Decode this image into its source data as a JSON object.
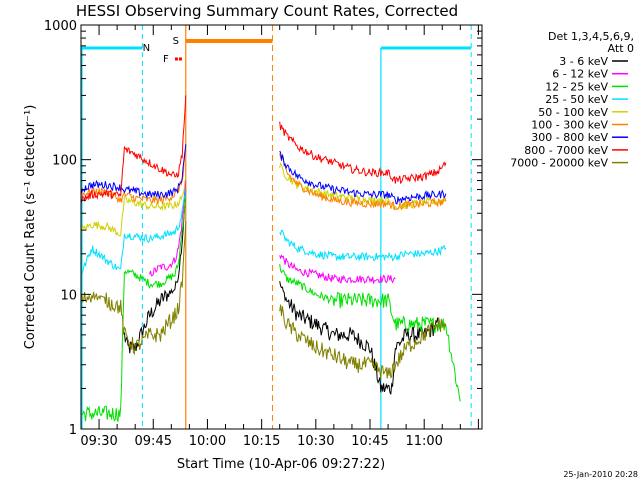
{
  "chart_data": {
    "type": "line",
    "title": "HESSI Observing Summary Count Rates, Corrected",
    "xlabel": "Start Time (10-Apr-06 09:27:22)",
    "ylabel": "Corrected Count Rate (s⁻¹ detector⁻¹)",
    "y_scale": "log",
    "ylim": [
      1,
      1000
    ],
    "xlim_minutes": [
      "09:25",
      "11:16"
    ],
    "y_ticks": [
      "1",
      "10",
      "100",
      "1000"
    ],
    "x_ticks": [
      "09:30",
      "09:45",
      "10:00",
      "10:15",
      "10:30",
      "10:45",
      "11:00"
    ],
    "legend_header": [
      "Det 1,3,4,5,6,9,",
      "Att 0"
    ],
    "grid": false,
    "footer_stamp": "25-Jan-2010 20:28",
    "flags": {
      "N": {
        "label": "N",
        "color": "#00e0ff",
        "night_segments": [
          [
            "09:25",
            "09:42"
          ],
          [
            "10:48",
            "11:13"
          ]
        ],
        "dashed_edges": [
          "09:42",
          "11:13"
        ]
      },
      "S": {
        "label": "S",
        "color": "#ff8000",
        "segment": [
          "09:54",
          "10:18"
        ],
        "dashed_edges": [
          "10:18"
        ],
        "solid_edges": [
          "09:54"
        ]
      },
      "F": {
        "label": "F",
        "color": "#ff0000",
        "segment": [
          "09:51",
          "09:53"
        ]
      }
    },
    "gaps": [
      [
        "09:54",
        "10:20"
      ]
    ],
    "series": [
      {
        "name": "3 - 6 keV",
        "color": "#000000",
        "points": [
          [
            "09:37",
            5
          ],
          [
            "09:38",
            4
          ],
          [
            "09:40",
            4
          ],
          [
            "09:44",
            7
          ],
          [
            "09:47",
            9
          ],
          [
            "09:49",
            10
          ],
          [
            "09:51",
            11
          ],
          [
            "09:52",
            14
          ],
          [
            "09:53",
            25
          ],
          [
            "09:54",
            60
          ],
          [
            "10:20",
            12
          ],
          [
            "10:22",
            9
          ],
          [
            "10:25",
            7
          ],
          [
            "10:30",
            6
          ],
          [
            "10:35",
            5
          ],
          [
            "10:40",
            5
          ],
          [
            "10:45",
            4
          ],
          [
            "10:48",
            2
          ],
          [
            "10:51",
            2
          ],
          [
            "10:52",
            4
          ],
          [
            "10:55",
            5
          ],
          [
            "11:00",
            5
          ],
          [
            "11:04",
            6
          ]
        ]
      },
      {
        "name": "6 - 12 keV",
        "color": "#ff00ff",
        "points": [
          [
            "09:44",
            14
          ],
          [
            "09:47",
            16
          ],
          [
            "09:49",
            16
          ],
          [
            "09:51",
            18
          ],
          [
            "09:52",
            22
          ],
          [
            "09:53",
            35
          ],
          [
            "09:54",
            70
          ],
          [
            "10:20",
            20
          ],
          [
            "10:22",
            17
          ],
          [
            "10:25",
            15
          ],
          [
            "10:30",
            14
          ],
          [
            "10:35",
            13
          ],
          [
            "10:40",
            13
          ],
          [
            "10:45",
            13
          ],
          [
            "10:50",
            13
          ],
          [
            "10:52",
            13
          ]
        ]
      },
      {
        "name": "12 - 25 keV",
        "color": "#00e000",
        "points": [
          [
            "09:25",
            1.3
          ],
          [
            "09:36",
            1.3
          ],
          [
            "09:37",
            15
          ],
          [
            "09:40",
            14
          ],
          [
            "09:44",
            12
          ],
          [
            "09:47",
            12
          ],
          [
            "09:49",
            13
          ],
          [
            "09:51",
            14
          ],
          [
            "09:52",
            17
          ],
          [
            "09:53",
            30
          ],
          [
            "09:54",
            55
          ],
          [
            "10:20",
            16
          ],
          [
            "10:22",
            13
          ],
          [
            "10:25",
            12
          ],
          [
            "10:30",
            10
          ],
          [
            "10:35",
            9
          ],
          [
            "10:40",
            9
          ],
          [
            "10:45",
            9
          ],
          [
            "10:50",
            9
          ],
          [
            "10:52",
            6
          ],
          [
            "10:55",
            6
          ],
          [
            "11:00",
            6
          ],
          [
            "11:04",
            6
          ],
          [
            "11:06",
            6
          ],
          [
            "11:10",
            1.6
          ]
        ]
      },
      {
        "name": "25 - 50 keV",
        "color": "#00e0ff",
        "points": [
          [
            "09:25",
            14
          ],
          [
            "09:28",
            22
          ],
          [
            "09:32",
            18
          ],
          [
            "09:36",
            15
          ],
          [
            "09:37",
            28
          ],
          [
            "09:40",
            27
          ],
          [
            "09:44",
            26
          ],
          [
            "09:47",
            27
          ],
          [
            "09:49",
            28
          ],
          [
            "09:51",
            29
          ],
          [
            "09:52",
            32
          ],
          [
            "09:53",
            40
          ],
          [
            "09:54",
            60
          ],
          [
            "10:20",
            30
          ],
          [
            "10:22",
            25
          ],
          [
            "10:25",
            22
          ],
          [
            "10:30",
            20
          ],
          [
            "10:35",
            19
          ],
          [
            "10:40",
            19
          ],
          [
            "10:45",
            19
          ],
          [
            "10:50",
            19
          ],
          [
            "10:52",
            19
          ],
          [
            "10:55",
            20
          ],
          [
            "11:00",
            20
          ],
          [
            "11:04",
            21
          ],
          [
            "11:06",
            22
          ]
        ]
      },
      {
        "name": "50 - 100 keV",
        "color": "#d0d000",
        "points": [
          [
            "09:25",
            30
          ],
          [
            "09:28",
            33
          ],
          [
            "09:32",
            32
          ],
          [
            "09:36",
            28
          ],
          [
            "09:37",
            50
          ],
          [
            "09:40",
            48
          ],
          [
            "09:44",
            45
          ],
          [
            "09:47",
            45
          ],
          [
            "09:49",
            45
          ],
          [
            "09:51",
            46
          ],
          [
            "09:52",
            48
          ],
          [
            "09:53",
            52
          ],
          [
            "09:54",
            75
          ],
          [
            "10:20",
            90
          ],
          [
            "10:22",
            75
          ],
          [
            "10:25",
            65
          ],
          [
            "10:30",
            58
          ],
          [
            "10:35",
            54
          ],
          [
            "10:40",
            52
          ],
          [
            "10:45",
            50
          ],
          [
            "10:50",
            50
          ],
          [
            "10:52",
            45
          ],
          [
            "10:55",
            46
          ],
          [
            "11:00",
            48
          ],
          [
            "11:04",
            49
          ],
          [
            "11:06",
            50
          ]
        ]
      },
      {
        "name": "100 - 300 keV",
        "color": "#ff8000",
        "points": [
          [
            "09:25",
            55
          ],
          [
            "09:28",
            58
          ],
          [
            "09:32",
            58
          ],
          [
            "09:36",
            50
          ],
          [
            "09:37",
            55
          ],
          [
            "09:40",
            52
          ],
          [
            "09:44",
            50
          ],
          [
            "09:47",
            50
          ],
          [
            "09:49",
            52
          ],
          [
            "09:51",
            55
          ],
          [
            "09:52",
            60
          ],
          [
            "09:53",
            70
          ],
          [
            "09:54",
            120
          ],
          [
            "10:20",
            110
          ],
          [
            "10:22",
            80
          ],
          [
            "10:25",
            65
          ],
          [
            "10:30",
            55
          ],
          [
            "10:35",
            50
          ],
          [
            "10:40",
            48
          ],
          [
            "10:45",
            47
          ],
          [
            "10:50",
            47
          ],
          [
            "10:52",
            45
          ],
          [
            "10:55",
            46
          ],
          [
            "11:00",
            47
          ],
          [
            "11:04",
            48
          ],
          [
            "11:06",
            49
          ]
        ]
      },
      {
        "name": "300 - 800 keV",
        "color": "#0000ff",
        "points": [
          [
            "09:25",
            60
          ],
          [
            "09:28",
            65
          ],
          [
            "09:32",
            65
          ],
          [
            "09:36",
            62
          ],
          [
            "09:37",
            60
          ],
          [
            "09:40",
            58
          ],
          [
            "09:44",
            55
          ],
          [
            "09:47",
            55
          ],
          [
            "09:49",
            56
          ],
          [
            "09:51",
            58
          ],
          [
            "09:52",
            62
          ],
          [
            "09:53",
            75
          ],
          [
            "09:54",
            130
          ],
          [
            "10:20",
            110
          ],
          [
            "10:22",
            90
          ],
          [
            "10:25",
            75
          ],
          [
            "10:30",
            65
          ],
          [
            "10:35",
            60
          ],
          [
            "10:40",
            57
          ],
          [
            "10:45",
            55
          ],
          [
            "10:50",
            55
          ],
          [
            "10:52",
            50
          ],
          [
            "10:55",
            52
          ],
          [
            "11:00",
            54
          ],
          [
            "11:04",
            55
          ],
          [
            "11:06",
            56
          ]
        ]
      },
      {
        "name": "800 - 7000 keV",
        "color": "#ff0000",
        "points": [
          [
            "09:25",
            50
          ],
          [
            "09:28",
            55
          ],
          [
            "09:32",
            56
          ],
          [
            "09:36",
            54
          ],
          [
            "09:37",
            120
          ],
          [
            "09:40",
            110
          ],
          [
            "09:44",
            95
          ],
          [
            "09:47",
            85
          ],
          [
            "09:49",
            80
          ],
          [
            "09:51",
            75
          ],
          [
            "09:52",
            80
          ],
          [
            "09:53",
            110
          ],
          [
            "09:54",
            300
          ],
          [
            "10:20",
            180
          ],
          [
            "10:22",
            150
          ],
          [
            "10:25",
            125
          ],
          [
            "10:30",
            105
          ],
          [
            "10:35",
            95
          ],
          [
            "10:40",
            85
          ],
          [
            "10:45",
            80
          ],
          [
            "10:50",
            80
          ],
          [
            "10:52",
            70
          ],
          [
            "10:55",
            72
          ],
          [
            "11:00",
            75
          ],
          [
            "11:04",
            82
          ],
          [
            "11:06",
            95
          ]
        ]
      },
      {
        "name": "7000 - 20000 keV",
        "color": "#808000",
        "points": [
          [
            "09:25",
            9
          ],
          [
            "09:28",
            10
          ],
          [
            "09:32",
            9
          ],
          [
            "09:36",
            8
          ],
          [
            "09:37",
            5
          ],
          [
            "09:40",
            4
          ],
          [
            "09:44",
            5
          ],
          [
            "09:47",
            5
          ],
          [
            "09:49",
            6
          ],
          [
            "09:51",
            7
          ],
          [
            "09:52",
            8
          ],
          [
            "09:53",
            12
          ],
          [
            "09:54",
            35
          ],
          [
            "10:20",
            8
          ],
          [
            "10:22",
            6
          ],
          [
            "10:25",
            5
          ],
          [
            "10:30",
            4
          ],
          [
            "10:35",
            3.5
          ],
          [
            "10:40",
            3
          ],
          [
            "10:45",
            3
          ],
          [
            "10:50",
            2.5
          ],
          [
            "10:52",
            3
          ],
          [
            "10:55",
            4
          ],
          [
            "11:00",
            5
          ],
          [
            "11:04",
            6
          ],
          [
            "11:06",
            6
          ]
        ]
      }
    ]
  }
}
